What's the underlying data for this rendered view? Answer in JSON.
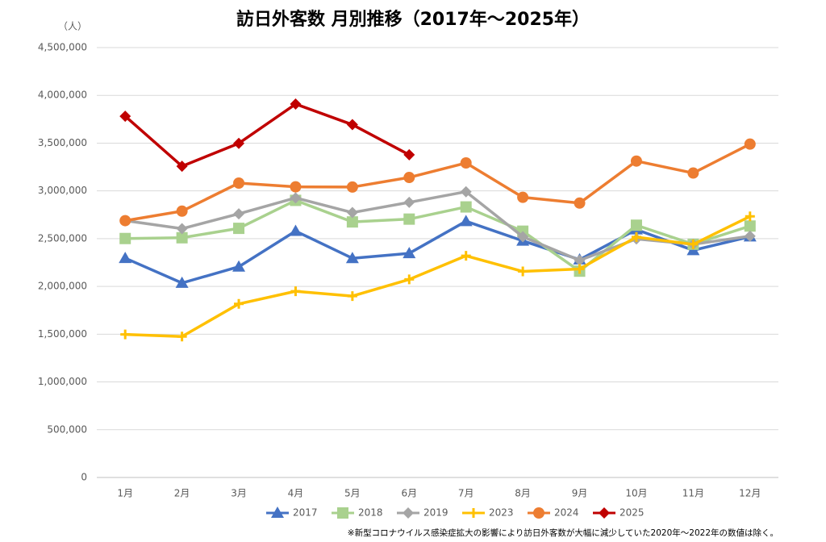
{
  "chart_data": {
    "type": "line",
    "title": "訪日外客数 月別推移（2017年～2025年）",
    "y_unit": "（人）",
    "note": "※新型コロナウイルス感染症拡大の影響により訪日外客数が大幅に減少していた2020年～2022年の数値は除く。",
    "categories": [
      "1月",
      "2月",
      "3月",
      "4月",
      "5月",
      "6月",
      "7月",
      "8月",
      "9月",
      "10月",
      "11月",
      "12月"
    ],
    "ylim": [
      0,
      4500000
    ],
    "yticks": [
      0,
      {
        "value": 500000,
        "label": "500,000"
      },
      {
        "value": 1000000,
        "label": "1,000,000"
      },
      {
        "value": 1500000,
        "label": "1,500,000"
      },
      {
        "value": 2000000,
        "label": "2,000,000"
      },
      {
        "value": 2500000,
        "label": "2,500,000"
      },
      {
        "value": 3000000,
        "label": "3,000,000"
      },
      {
        "value": 3500000,
        "label": "3,500,000"
      },
      {
        "value": 4000000,
        "label": "4,000,000"
      },
      {
        "value": 4500000,
        "label": "4,500,000"
      }
    ],
    "grid": true,
    "legend": "bottom",
    "series": [
      {
        "name": "2017",
        "color": "#4472c4",
        "marker": "triangle",
        "values": [
          2295759,
          2035783,
          2205732,
          2578985,
          2294702,
          2346396,
          2681971,
          2477210,
          2280199,
          2594796,
          2378092,
          2521200
        ]
      },
      {
        "name": "2018",
        "color": "#a9d18e",
        "marker": "square",
        "values": [
          2501409,
          2509297,
          2607956,
          2900718,
          2675052,
          2704631,
          2832040,
          2578021,
          2159595,
          2640611,
          2441274,
          2632000
        ]
      },
      {
        "name": "2019",
        "color": "#a5a5a5",
        "marker": "diamond",
        "values": [
          2689339,
          2604322,
          2760136,
          2926685,
          2773091,
          2880041,
          2991189,
          2520134,
          2272883,
          2496568,
          2441000,
          2526387
        ]
      },
      {
        "name": "2023",
        "color": "#ffc000",
        "marker": "plus",
        "values": [
          1497472,
          1475455,
          1817000,
          1949100,
          1898900,
          2073300,
          2320600,
          2156900,
          2182300,
          2516500,
          2440600,
          2733000
        ]
      },
      {
        "name": "2024",
        "color": "#ed7d31",
        "marker": "circle",
        "values": [
          2688100,
          2788000,
          3081600,
          3042500,
          3040100,
          3140600,
          3292600,
          2932600,
          2872300,
          3312100,
          3186800,
          3489800
        ]
      },
      {
        "name": "2025",
        "color": "#c00000",
        "marker": "diamond",
        "values": [
          3781600,
          3258100,
          3497600,
          3908900,
          3693300,
          3377800,
          null,
          null,
          null,
          null,
          null,
          null
        ]
      }
    ]
  }
}
